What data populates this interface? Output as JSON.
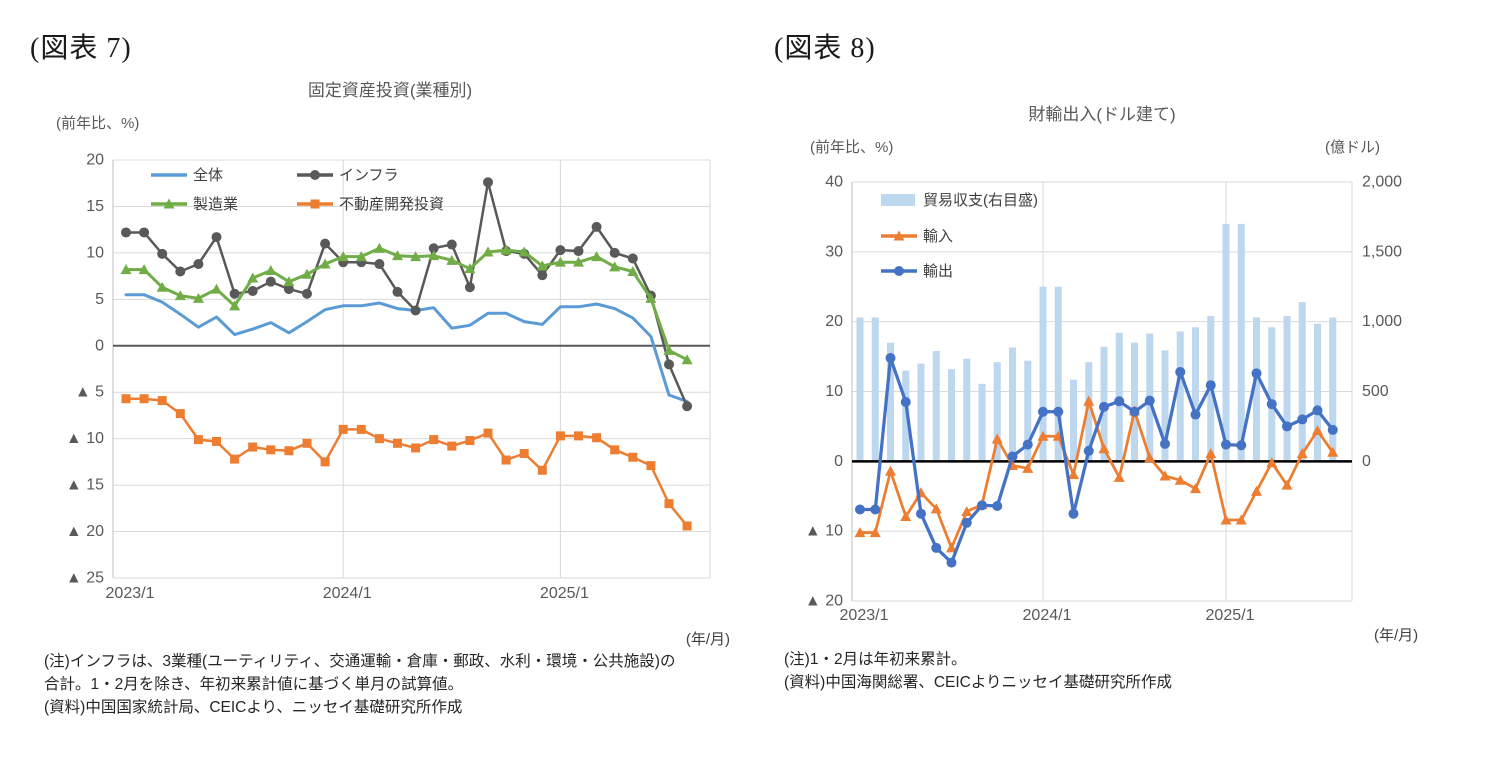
{
  "figures": [
    {
      "label": "(図表 7)"
    },
    {
      "label": "(図表 8)"
    }
  ],
  "chart_data": [
    {
      "type": "line",
      "title": "固定資産投資(業種別)",
      "unit_label": "(前年比、%)",
      "x_unit_label": "(年/月)",
      "ylim": [
        -25,
        20
      ],
      "grid": true,
      "legend_position": "top-left-inside",
      "x": [
        "2023/1",
        "2023/2",
        "2023/3",
        "2023/4",
        "2023/5",
        "2023/6",
        "2023/7",
        "2023/8",
        "2023/9",
        "2023/10",
        "2023/11",
        "2023/12",
        "2024/1",
        "2024/2",
        "2024/3",
        "2024/4",
        "2024/5",
        "2024/6",
        "2024/7",
        "2024/8",
        "2024/9",
        "2024/10",
        "2024/11",
        "2024/12",
        "2025/1",
        "2025/2",
        "2025/3",
        "2025/4",
        "2025/5",
        "2025/6",
        "2025/7",
        "2025/8"
      ],
      "x_ticks": [
        {
          "index": 0,
          "label": "2023/1"
        },
        {
          "index": 12,
          "label": "2024/1"
        },
        {
          "index": 24,
          "label": "2025/1"
        }
      ],
      "y_ticks": [
        {
          "v": 20,
          "label": "20"
        },
        {
          "v": 15,
          "label": "15"
        },
        {
          "v": 10,
          "label": "10"
        },
        {
          "v": 5,
          "label": "5"
        },
        {
          "v": 0,
          "label": "0"
        },
        {
          "v": -5,
          "label": "▲ 5"
        },
        {
          "v": -10,
          "label": "▲ 10"
        },
        {
          "v": -15,
          "label": "▲ 15"
        },
        {
          "v": -20,
          "label": "▲ 20"
        },
        {
          "v": -25,
          "label": "▲ 25"
        }
      ],
      "series": [
        {
          "name": "全体",
          "color": "#5B9BD5",
          "marker": "none",
          "width": 3,
          "values": [
            5.5,
            5.5,
            4.7,
            3.4,
            2.0,
            3.1,
            1.2,
            1.8,
            2.5,
            1.4,
            2.6,
            3.9,
            4.3,
            4.3,
            4.6,
            4.0,
            3.8,
            4.1,
            1.9,
            2.2,
            3.5,
            3.5,
            2.6,
            2.3,
            4.2,
            4.2,
            4.5,
            4.0,
            3.0,
            1.0,
            -5.3,
            -6.0
          ]
        },
        {
          "name": "インフラ",
          "color": "#595959",
          "marker": "circle",
          "width": 2.5,
          "values": [
            12.2,
            12.2,
            9.9,
            8.0,
            8.8,
            11.7,
            5.6,
            5.9,
            6.9,
            6.1,
            5.6,
            11.0,
            9.0,
            9.0,
            8.8,
            5.8,
            3.8,
            10.5,
            10.9,
            6.3,
            17.6,
            10.2,
            9.9,
            7.6,
            10.3,
            10.2,
            12.8,
            10.0,
            9.4,
            5.4,
            -2.0,
            -6.5
          ]
        },
        {
          "name": "製造業",
          "color": "#70AD47",
          "marker": "triangle",
          "width": 3,
          "values": [
            8.2,
            8.2,
            6.3,
            5.4,
            5.1,
            6.1,
            4.3,
            7.3,
            8.1,
            6.9,
            7.7,
            8.8,
            9.6,
            9.6,
            10.5,
            9.7,
            9.6,
            9.7,
            9.2,
            8.3,
            10.1,
            10.3,
            10.1,
            8.6,
            9.0,
            9.0,
            9.6,
            8.5,
            8.0,
            5.1,
            -0.5,
            -1.5
          ]
        },
        {
          "name": "不動産開発投資",
          "color": "#ED7D31",
          "marker": "square",
          "width": 2.5,
          "values": [
            -5.7,
            -5.7,
            -5.9,
            -7.3,
            -10.1,
            -10.3,
            -12.2,
            -10.9,
            -11.2,
            -11.3,
            -10.5,
            -12.5,
            -9.0,
            -9.0,
            -10.0,
            -10.5,
            -11.0,
            -10.1,
            -10.8,
            -10.2,
            -9.4,
            -12.3,
            -11.6,
            -13.4,
            -9.7,
            -9.7,
            -9.9,
            -11.2,
            -12.0,
            -12.9,
            -17.0,
            -19.4
          ]
        }
      ],
      "zero_line_color": "#595959",
      "grid_color": "#D9D9D9",
      "notes": [
        "(注)インフラは、3業種(ユーティリティ、交通運輸・倉庫・郵政、水利・環境・公共施設)の",
        "合計。1・2月を除き、年初来累計値に基づく単月の試算値。",
        "(資料)中国国家統計局、CEICより、ニッセイ基礎研究所作成"
      ]
    },
    {
      "type": "bar+line",
      "title": "財輸出入(ドル建て)",
      "unit_label_left": "(前年比、%)",
      "unit_label_right": "(億ドル)",
      "x_unit_label": "(年/月)",
      "ylim_left": [
        -20,
        40
      ],
      "ylim_right": [
        0,
        2000
      ],
      "grid": true,
      "legend_position": "top-left-inside",
      "x": [
        "2023/1",
        "2023/2",
        "2023/3",
        "2023/4",
        "2023/5",
        "2023/6",
        "2023/7",
        "2023/8",
        "2023/9",
        "2023/10",
        "2023/11",
        "2023/12",
        "2024/1",
        "2024/2",
        "2024/3",
        "2024/4",
        "2024/5",
        "2024/6",
        "2024/7",
        "2024/8",
        "2024/9",
        "2024/10",
        "2024/11",
        "2024/12",
        "2025/1",
        "2025/2",
        "2025/3",
        "2025/4",
        "2025/5",
        "2025/6",
        "2025/7",
        "2025/8"
      ],
      "x_ticks": [
        {
          "index": 0,
          "label": "2023/1"
        },
        {
          "index": 12,
          "label": "2024/1"
        },
        {
          "index": 24,
          "label": "2025/1"
        }
      ],
      "y_ticks_left": [
        {
          "v": 40,
          "label": "40"
        },
        {
          "v": 30,
          "label": "30"
        },
        {
          "v": 20,
          "label": "20"
        },
        {
          "v": 10,
          "label": "10"
        },
        {
          "v": 0,
          "label": "0"
        },
        {
          "v": -10,
          "label": "▲ 10"
        },
        {
          "v": -20,
          "label": "▲ 20"
        }
      ],
      "y_ticks_right": [
        {
          "v": 2000,
          "label": "2,000"
        },
        {
          "v": 1500,
          "label": "1,500"
        },
        {
          "v": 1000,
          "label": "1,000"
        },
        {
          "v": 500,
          "label": "500"
        },
        {
          "v": 0,
          "label": "0"
        }
      ],
      "bar_series": {
        "name": "貿易収支(右目盛)",
        "color": "#BDD7EE",
        "axis": "right",
        "values": [
          1030,
          1030,
          850,
          650,
          700,
          790,
          660,
          735,
          555,
          710,
          815,
          720,
          1250,
          1250,
          585,
          710,
          820,
          920,
          850,
          915,
          795,
          930,
          960,
          1040,
          1700,
          1700,
          1030,
          960,
          1040,
          1140,
          985,
          1030
        ]
      },
      "series": [
        {
          "name": "輸入",
          "color": "#ED7D31",
          "marker": "triangle",
          "width": 2.75,
          "values": [
            -10.2,
            -10.2,
            -1.4,
            -7.9,
            -4.5,
            -6.8,
            -12.4,
            -7.2,
            -6.2,
            3.2,
            -0.6,
            -1.0,
            3.6,
            3.6,
            -1.9,
            8.6,
            1.8,
            -2.3,
            7.2,
            0.5,
            -2.1,
            -2.7,
            -3.9,
            1.1,
            -8.4,
            -8.4,
            -4.3,
            -0.2,
            -3.4,
            1.1,
            4.4,
            1.3
          ]
        },
        {
          "name": "輸出",
          "color": "#4472C4",
          "marker": "circle",
          "width": 3.25,
          "values": [
            -6.9,
            -6.9,
            14.8,
            8.5,
            -7.5,
            -12.4,
            -14.5,
            -8.8,
            -6.3,
            -6.4,
            0.7,
            2.4,
            7.1,
            7.1,
            -7.5,
            1.5,
            7.8,
            8.6,
            7.1,
            8.7,
            2.5,
            12.8,
            6.7,
            10.9,
            2.4,
            2.3,
            12.6,
            8.2,
            5.0,
            6.0,
            7.3,
            4.5
          ]
        }
      ],
      "zero_line_color": "#000000",
      "grid_color": "#D9D9D9",
      "notes": [
        "(注)1・2月は年初来累計。",
        "(資料)中国海関総署、CEICよりニッセイ基礎研究所作成"
      ]
    }
  ]
}
